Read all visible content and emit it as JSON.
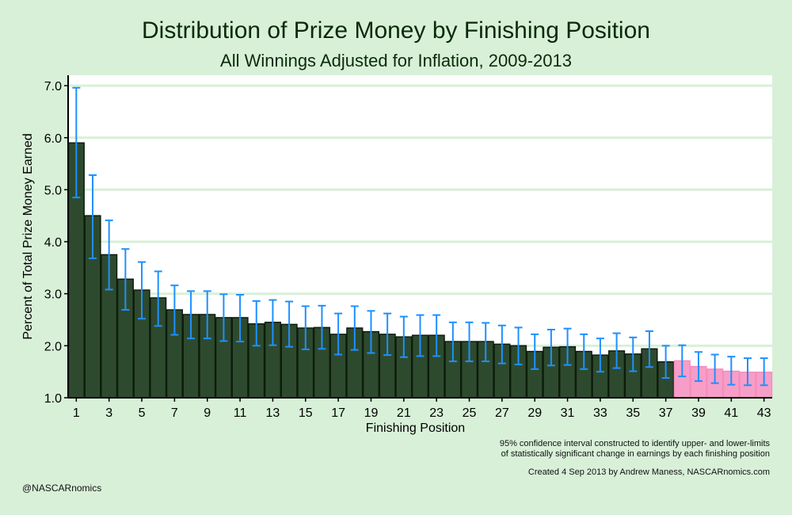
{
  "chart_data": {
    "type": "bar",
    "title": "Distribution of Prize Money by Finishing Position",
    "subtitle": "All Winnings Adjusted for Inflation, 2009-2013",
    "xlabel": "Finishing Position",
    "ylabel": "Percent of Total Prize Money Earned",
    "ylim": [
      1.0,
      7.2
    ],
    "yticks": [
      "1.0",
      "2.0",
      "3.0",
      "4.0",
      "5.0",
      "6.0",
      "7.0"
    ],
    "xticks": [
      1,
      3,
      5,
      7,
      9,
      11,
      13,
      15,
      17,
      19,
      21,
      23,
      25,
      27,
      29,
      31,
      33,
      35,
      37,
      39,
      41,
      43
    ],
    "grid": true,
    "colors": {
      "main": "#2e4a2e",
      "highlight": "#f79ec8",
      "error": "#1e90ff",
      "grid": "#d8f0d8"
    },
    "highlight_positions": [
      38,
      39,
      40,
      41,
      42,
      43
    ],
    "categories": [
      1,
      2,
      3,
      4,
      5,
      6,
      7,
      8,
      9,
      10,
      11,
      12,
      13,
      14,
      15,
      16,
      17,
      18,
      19,
      20,
      21,
      22,
      23,
      24,
      25,
      26,
      27,
      28,
      29,
      30,
      31,
      32,
      33,
      34,
      35,
      36,
      37,
      38,
      39,
      40,
      41,
      42,
      43
    ],
    "values": [
      5.9,
      4.5,
      3.75,
      3.28,
      3.07,
      2.92,
      2.69,
      2.6,
      2.6,
      2.54,
      2.54,
      2.42,
      2.45,
      2.41,
      2.34,
      2.35,
      2.22,
      2.34,
      2.27,
      2.22,
      2.17,
      2.2,
      2.2,
      2.08,
      2.08,
      2.08,
      2.03,
      2.0,
      1.89,
      1.97,
      1.98,
      1.89,
      1.82,
      1.9,
      1.84,
      1.94,
      1.69,
      1.71,
      1.6,
      1.55,
      1.51,
      1.49,
      1.49
    ],
    "error_low": [
      4.85,
      3.68,
      3.08,
      2.69,
      2.52,
      2.38,
      2.21,
      2.14,
      2.14,
      2.09,
      2.08,
      2.0,
      2.01,
      1.98,
      1.93,
      1.94,
      1.83,
      1.92,
      1.86,
      1.82,
      1.78,
      1.8,
      1.8,
      1.7,
      1.7,
      1.7,
      1.66,
      1.64,
      1.55,
      1.62,
      1.63,
      1.55,
      1.5,
      1.57,
      1.51,
      1.59,
      1.38,
      1.41,
      1.32,
      1.28,
      1.25,
      1.24,
      1.24
    ],
    "error_high": [
      6.96,
      5.28,
      4.41,
      3.86,
      3.61,
      3.43,
      3.16,
      3.05,
      3.05,
      2.99,
      2.98,
      2.86,
      2.88,
      2.85,
      2.76,
      2.77,
      2.62,
      2.76,
      2.67,
      2.62,
      2.56,
      2.59,
      2.59,
      2.45,
      2.45,
      2.44,
      2.39,
      2.35,
      2.22,
      2.31,
      2.33,
      2.22,
      2.14,
      2.24,
      2.16,
      2.28,
      2.0,
      2.01,
      1.88,
      1.83,
      1.79,
      1.76,
      1.76
    ]
  },
  "notes": {
    "ci_line1": "95% confidence interval constructed to identify upper- and lower-limits",
    "ci_line2": "of statistically significant change in earnings by each finishing position",
    "created": "Created  4 Sep 2013 by Andrew Maness, NASCARnomics.com",
    "handle": "@NASCARnomics"
  }
}
